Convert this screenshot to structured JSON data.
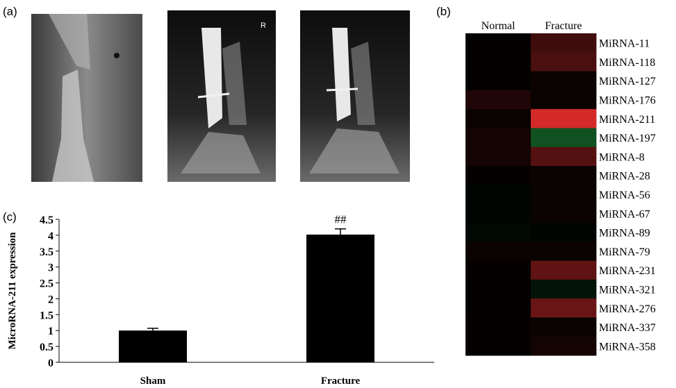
{
  "figure_a": {
    "panel_label": "(a)",
    "annotations": [
      "R"
    ]
  },
  "chart_data": [
    {
      "type": "heatmap",
      "panel_label": "(b)",
      "columns": [
        "Normal",
        "Fracture"
      ],
      "rows": [
        "MiRNA-11",
        "MiRNA-118",
        "MiRNA-127",
        "MiRNA-176",
        "MiRNA-211",
        "MiRNA-197",
        "MiRNA-8",
        "MiRNA-28",
        "MiRNA-56",
        "MiRNA-67",
        "MiRNA-89",
        "MiRNA-79",
        "MiRNA-231",
        "MiRNA-321",
        "MiRNA-276",
        "MiRNA-337",
        "MiRNA-358"
      ],
      "values": [
        [
          0.02,
          0.3
        ],
        [
          0.02,
          0.35
        ],
        [
          0.02,
          0.05
        ],
        [
          0.15,
          0.05
        ],
        [
          0.05,
          1.0
        ],
        [
          0.1,
          -0.5
        ],
        [
          0.1,
          0.4
        ],
        [
          0.03,
          0.05
        ],
        [
          -0.03,
          0.05
        ],
        [
          -0.03,
          0.05
        ],
        [
          -0.05,
          -0.03
        ],
        [
          0.05,
          0.05
        ],
        [
          0.03,
          0.45
        ],
        [
          0.02,
          -0.12
        ],
        [
          0.02,
          0.5
        ],
        [
          0.03,
          0.05
        ],
        [
          0.03,
          0.1
        ]
      ],
      "vlim": [
        -1,
        1
      ],
      "colors": {
        "low": "#22a040",
        "mid": "#000000",
        "high": "#d42a2a"
      }
    },
    {
      "type": "bar",
      "panel_label": "(c)",
      "ylabel": "MicroRNA-211 expression",
      "categories": [
        "Sham",
        "Fracture"
      ],
      "values": [
        1.0,
        4.02
      ],
      "errors": [
        0.07,
        0.18
      ],
      "value_annotations": [
        null,
        "##"
      ],
      "color": "#000000",
      "ylim": [
        0,
        4.5
      ],
      "yticks": [
        0,
        0.5,
        1,
        1.5,
        2,
        2.5,
        3,
        3.5,
        4,
        4.5
      ]
    }
  ]
}
